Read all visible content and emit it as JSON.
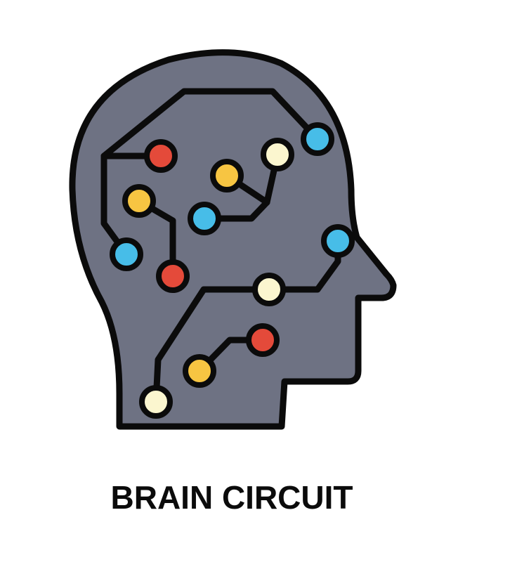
{
  "caption": "BRAIN CIRCUIT",
  "icon": "head-circuit-icon",
  "colors": {
    "head_fill": "#6e7283",
    "outline": "#0b0b0b",
    "node_red": "#e44a3a",
    "node_yellow": "#f7c542",
    "node_blue": "#47bde8",
    "node_cream": "#fbf6cf",
    "background": "#ffffff"
  }
}
